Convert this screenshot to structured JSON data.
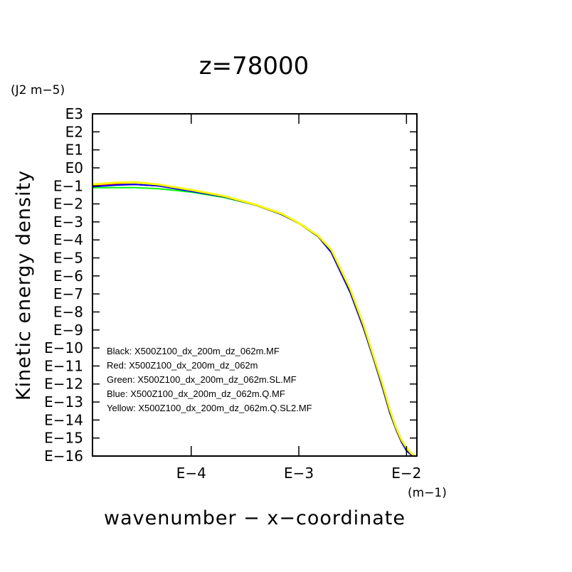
{
  "chart_data": {
    "type": "line",
    "title": "z=78000",
    "xlabel": "wavenumber − x−coordinate",
    "ylabel": "Kinetic energy density",
    "xunit": "(m−1)",
    "yunit": "(J2 m−5)",
    "xscale": "log",
    "yscale": "log",
    "xlim": [
      1.21e-05,
      0.0125
    ],
    "ylim": [
      1e-16,
      1000
    ],
    "x_ticks": [
      {
        "value": 0.0001,
        "label": "E−4"
      },
      {
        "value": 0.001,
        "label": "E−3"
      },
      {
        "value": 0.01,
        "label": "E−2"
      }
    ],
    "y_ticks": [
      {
        "value": 1000,
        "label": "E3"
      },
      {
        "value": 100,
        "label": "E2"
      },
      {
        "value": 10,
        "label": "E1"
      },
      {
        "value": 1,
        "label": "E0"
      },
      {
        "value": 0.1,
        "label": "E−1"
      },
      {
        "value": 0.01,
        "label": "E−2"
      },
      {
        "value": 0.001,
        "label": "E−3"
      },
      {
        "value": 0.0001,
        "label": "E−4"
      },
      {
        "value": 1e-05,
        "label": "E−5"
      },
      {
        "value": 1e-06,
        "label": "E−6"
      },
      {
        "value": 1e-07,
        "label": "E−7"
      },
      {
        "value": 1e-08,
        "label": "E−8"
      },
      {
        "value": 1e-09,
        "label": "E−9"
      },
      {
        "value": 1e-10,
        "label": "E−10"
      },
      {
        "value": 1e-11,
        "label": "E−11"
      },
      {
        "value": 1e-12,
        "label": "E−12"
      },
      {
        "value": 1e-13,
        "label": "E−13"
      },
      {
        "value": 1e-14,
        "label": "E−14"
      },
      {
        "value": 1e-15,
        "label": "E−15"
      },
      {
        "value": 1e-16,
        "label": "E−16"
      }
    ],
    "grid": false,
    "legend_position": "bottom-left",
    "series": [
      {
        "name": "Black: X500Z100_dx_200m_dz_062m.MF",
        "color": "#000000",
        "x": [
          1.21e-05,
          2e-05,
          3e-05,
          5e-05,
          0.0001,
          0.0002,
          0.0004,
          0.0007,
          0.001,
          0.0015,
          0.002,
          0.003,
          0.004,
          0.005,
          0.006,
          0.007,
          0.008,
          0.009,
          0.01,
          0.011,
          0.012
        ],
        "y": [
          0.1,
          0.12,
          0.12,
          0.1,
          0.05,
          0.025,
          0.0085,
          0.0025,
          0.00085,
          0.00016,
          2.5e-05,
          1.6e-07,
          1.6e-09,
          2.5e-11,
          8e-13,
          3e-14,
          3e-15,
          6e-16,
          2e-16,
          1.2e-16,
          1e-16
        ]
      },
      {
        "name": "Red: X500Z100_dx_200m_dz_062m",
        "color": "#ff0000",
        "x": [
          1.21e-05,
          2e-05,
          3e-05,
          5e-05,
          0.0001,
          0.00013,
          0.0002,
          0.0004,
          0.0007,
          0.001,
          0.0015,
          0.002,
          0.003,
          0.004,
          0.005,
          0.006,
          0.007,
          0.008,
          0.009,
          0.01,
          0.011,
          0.012
        ],
        "y": [
          0.1,
          0.12,
          0.12,
          0.1,
          0.05,
          0.035,
          0.025,
          0.0085,
          0.0025,
          0.00085,
          0.00016,
          2.5e-05,
          1.6e-07,
          1.6e-09,
          2.5e-11,
          8e-13,
          3e-14,
          3e-15,
          6e-16,
          3e-16,
          1.2e-16,
          1e-16
        ]
      },
      {
        "name": "Green: X500Z100_dx_200m_dz_062m.SL.MF",
        "color": "#00ff00",
        "x": [
          1.21e-05,
          2e-05,
          3e-05,
          5e-05,
          0.0001,
          0.0002,
          0.0004,
          0.0007,
          0.001,
          0.0015,
          0.002,
          0.003,
          0.004,
          0.005,
          0.006,
          0.007,
          0.008,
          0.009,
          0.01,
          0.011,
          0.012
        ],
        "y": [
          0.08,
          0.08,
          0.08,
          0.07,
          0.045,
          0.023,
          0.0085,
          0.0025,
          0.00085,
          0.00016,
          2.5e-05,
          1.6e-07,
          1.6e-09,
          2.5e-11,
          8e-13,
          3e-14,
          4e-15,
          9e-16,
          2e-16,
          1.2e-16,
          1e-16
        ]
      },
      {
        "name": "Blue: X500Z100_dx_200m_dz_062m.Q.MF",
        "color": "#0000ff",
        "x": [
          1.21e-05,
          2e-05,
          3e-05,
          5e-05,
          0.0001,
          0.0002,
          0.0004,
          0.0007,
          0.001,
          0.0015,
          0.002,
          0.003,
          0.004,
          0.005,
          0.006,
          0.007,
          0.008,
          0.009,
          0.01,
          0.011,
          0.012
        ],
        "y": [
          0.09,
          0.11,
          0.12,
          0.1,
          0.05,
          0.025,
          0.0085,
          0.0025,
          0.00085,
          0.00016,
          2e-05,
          1.2e-07,
          1.2e-09,
          2e-11,
          6e-13,
          2.5e-14,
          3e-15,
          6e-16,
          2e-16,
          1.2e-16,
          1e-16
        ]
      },
      {
        "name": "Yellow: X500Z100_dx_200m_dz_062m.Q.SL2.MF",
        "color": "#ffff00",
        "x": [
          1.21e-05,
          2e-05,
          3e-05,
          5e-05,
          0.0001,
          0.0002,
          0.0004,
          0.0007,
          0.001,
          0.0015,
          0.002,
          0.003,
          0.004,
          0.005,
          0.006,
          0.007,
          0.008,
          0.009,
          0.01,
          0.011,
          0.012
        ],
        "y": [
          0.12,
          0.15,
          0.16,
          0.12,
          0.06,
          0.028,
          0.009,
          0.0028,
          0.0009,
          0.00018,
          3e-05,
          2e-07,
          2e-09,
          3e-11,
          1e-12,
          4e-14,
          4e-15,
          8e-16,
          3e-16,
          1.5e-16,
          1e-16
        ]
      }
    ]
  }
}
